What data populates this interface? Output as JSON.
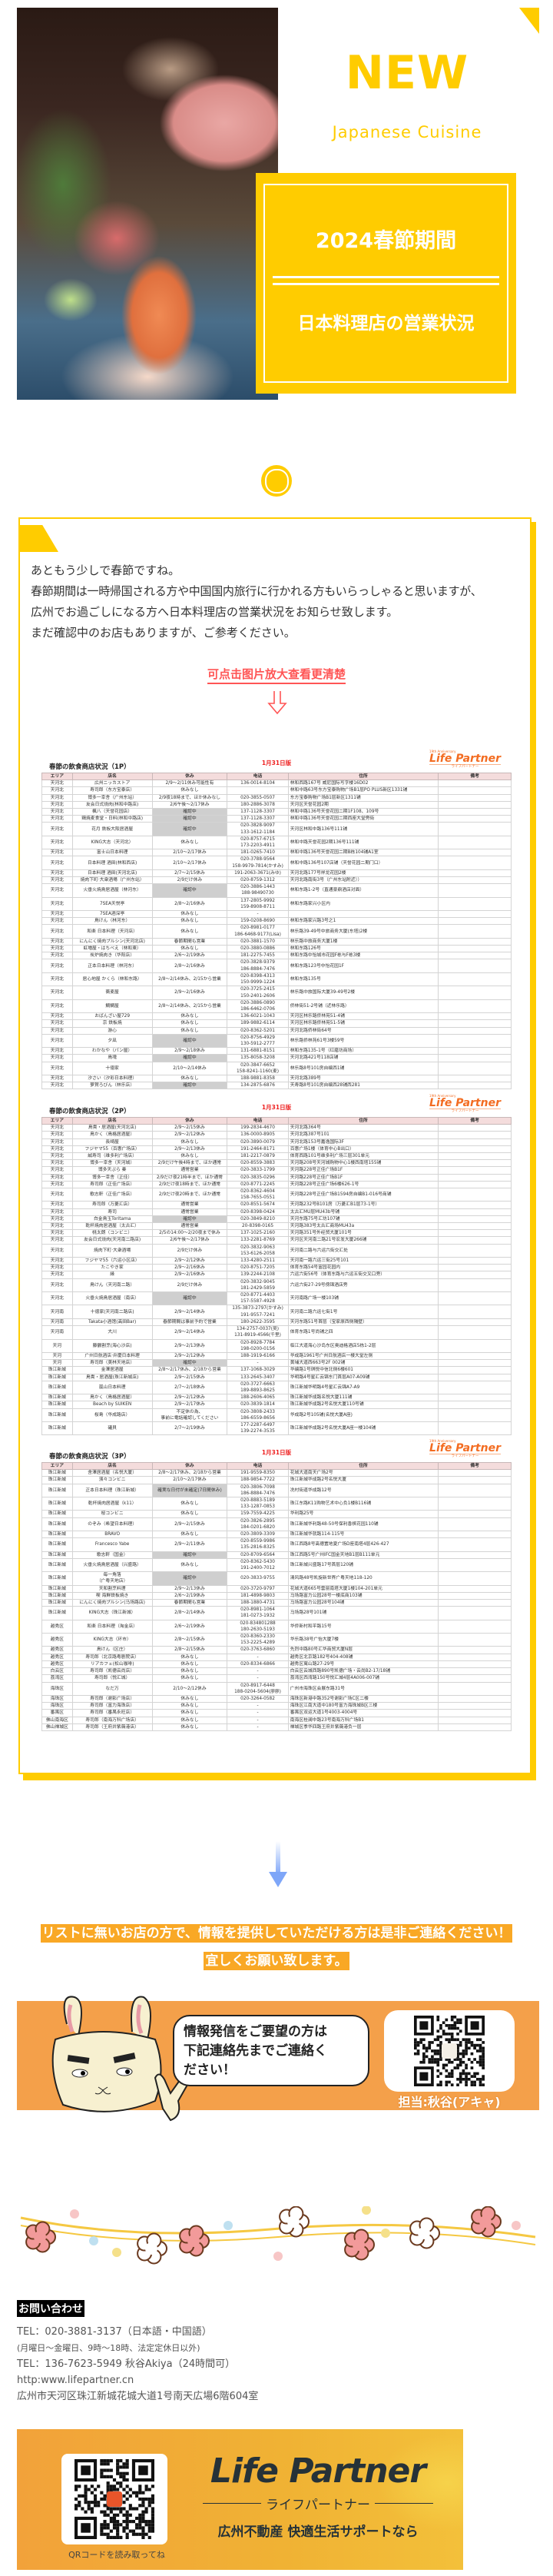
{
  "colors": {
    "accent": "#FFCC00",
    "orange": "#F4A04A",
    "link_red": "#FF5555",
    "logo_orange": "#F36C21"
  },
  "hero": {
    "title": "NEW",
    "subtitle": "Japanese Cuisine",
    "box_title": "2024春節期間",
    "box_subtitle": "日本料理店の営業状況"
  },
  "intro": {
    "lines": [
      "あともう少しで春節ですね。",
      "春節期間は一時帰国される方や中国国内旅行に行かれる方もいらっしゃると思いますが、",
      "広州でお過ごしになる方へ日本料理店の営業状況をお知らせ致します。",
      "まだ確認中のお店もありますが、ご参考ください。"
    ],
    "zoom_hint": "可点击图片放大查看更清楚",
    "arrow_icon": "arrow-down-outline-icon"
  },
  "table_logo": {
    "anniversary": "19th Anniversary",
    "name": "Life Partner",
    "sub": "ライフパートナー"
  },
  "tables": [
    {
      "title": "春節の飲食商店状況（1P）",
      "edition": "1月31日版",
      "headers": [
        "エリア",
        "店名",
        "休み",
        "电话",
        "住所",
        "備考"
      ],
      "rows": [
        [
          "天河北",
          "広州ニッカストア",
          "2/9～2/11休み可能性有",
          "136-0014-8104",
          "林和西路167号 威尼国际写字楼16D02"
        ],
        [
          "天河北",
          "寿司郎（东方宝泰店）",
          "休みなし",
          "",
          "林和中路63号东方宝泰购物广场B1层PO PLUS新区1331铺"
        ],
        [
          "天河北",
          "博多一幸舎（广州东站）",
          "2/9夜18時まで、ほか休みなし",
          "020-3855-0507",
          "东方宝泰购物广场B1层新区1311铺"
        ],
        [
          "天河北",
          "友会日式烧肉(林和中路店)",
          "2/6午後～2/17休み",
          "180-2886-3078",
          "天河区天誉花园2期"
        ],
        [
          "天河北",
          "楓八（天誉花园店）",
          "確認中",
          "137-1128-3307",
          "林和中路136号天誉花园二期1F108、109号"
        ],
        [
          "天河北",
          "鶏焼麦食堂・日料(林和中路店)",
          "確認中",
          "137-1128-3307",
          "林和中路136号天誉花园二期西座大堂旁街"
        ],
        [
          "天河北",
          "花月 鉄板大阪居酒屋",
          "確認中",
          "020-3828-9097\n133-1612-1184",
          "天河区林和中路136号111铺"
        ],
        [
          "天河北",
          "KING大志（天河北）",
          "休みなし",
          "020-8757-6715\n173-2203-4911",
          "林和中路天誉花园2期136号111铺"
        ],
        [
          "天河北",
          "富士山日本料理",
          "2/10～2/17休み",
          "181-0265-7410",
          "林和中路136号天誉花园二期B栋104铺A1室"
        ],
        [
          "天河北",
          "日本料理 酒田(林和西店)",
          "2/10～2/17休み",
          "020-3788-9564\n158-9979-7814(かすみ)",
          "林和中路136号107店铺（天誉花园二期门口）"
        ],
        [
          "天河北",
          "日本料理 酒田(天河北店)",
          "2/7～2/15休み",
          "191-2063-3671(みゆ)",
          "天河北路177号祥龙花园2楼"
        ],
        [
          "天河北",
          "焼肉下町·大衆酒場（广州东站）",
          "2/9だけ休み",
          "020-8759-1312",
          "天河北路南街3号（广州东站附近））"
        ],
        [
          "天河北",
          "火垂火焼鳥居酒屋（林河东）",
          "確認中",
          "020-3886-1443\n188-98490730",
          "林和东路1-2号（直通豪鼎酒店对面）"
        ],
        [
          "天河北",
          "7SEA天悦亭",
          "2/8～2/16休み",
          "137-2805-9992\n159-8908-8711",
          "林和东路家兴小区内"
        ],
        [
          "天河北",
          "7SEA酒深亭",
          "休みなし",
          "-",
          ""
        ],
        [
          "天河北",
          "鳥けん（林河东）",
          "休みなし",
          "159-0208-8690",
          "林和东路家兴路3号之1"
        ],
        [
          "天河北",
          "和楽 日本料理（天河店）",
          "休みなし",
          "020-8981-0177\n186-6468-9177(Lisa)",
          "林乐路39-49号中旅商务大厦(东塔)2楼"
        ],
        [
          "天河北",
          "にんにく焼肉プルシン(天河北店)",
          "春節期間も営業",
          "020-3881-1570",
          "林乐路中旅商务大厦1楼"
        ],
        [
          "天河北",
          "虹増屋・はちべえ（林和東）",
          "休みなし",
          "020-3880-0886",
          "林和东路126号"
        ],
        [
          "天河北",
          "炭炉焼肉き（华阳店）",
          "2/6～2/19休み",
          "181-2275-7455",
          "林和东路中怡城市花园F栋与F栋3楼"
        ],
        [
          "天河北",
          "正本日本料理（林河东）",
          "2/8～2/16休み",
          "020-3828-9379\n186-8884-7476",
          "林和东路123号中怡花园1F"
        ],
        [
          "天河北",
          "居心地屋 かくら（林和东路）",
          "2/8～2/14休み、2/15から営業",
          "020-8398-4313\n150-9999-1224",
          "林和东路135号"
        ],
        [
          "天河北",
          "蕎麦屋",
          "2/9～2/16休み",
          "020-3725-2415\n150-2401-2606",
          "林乐路中旅国际大厦39-49号2楼"
        ],
        [
          "天河北",
          "鯛鯛屋",
          "2/8～2/14休み、2/15から営業",
          "020-3886-0890\n186-6462-0706",
          "侨林街51-2号铺（近林乐路）"
        ],
        [
          "天河北",
          "おばんざい屋729",
          "休みなし",
          "136-6021-1043",
          "天河区林乐路侨林苑51-4铺"
        ],
        [
          "天河北",
          "京 鉄板焼",
          "休みなし",
          "189-9882-6114",
          "天河区林乐路侨林苑51-5铺"
        ],
        [
          "天河北",
          "游心",
          "休みなし",
          "020-8362-5201",
          "天河北路侨林街64号"
        ],
        [
          "天河北",
          "夕凪",
          "確認中",
          "020-8756-4929\n130-5912-2777",
          "林乐路侨林苑61号3楼59号"
        ],
        [
          "天河北",
          "わかなや（パン屋）",
          "2/9～2/18休み",
          "131-6881-8151",
          "林和东路135-1号（红磨坊商场）"
        ],
        [
          "天河北",
          "鳥魂",
          "確認中",
          "135-8058-3208",
          "天河北路421号118店铺"
        ],
        [
          "天河北",
          "十徳家",
          "2/10～2/14休み",
          "020-3847-6652\n158-8241-1160(麦)",
          "林乐路8号101房自编西1铺"
        ],
        [
          "天河北",
          "汐さい（汐彩日本料理）",
          "休みなし",
          "188-9881-8358",
          "天河北路389号"
        ],
        [
          "天河北",
          "萝賀ろびん（林乐店）",
          "確認中",
          "134-2875-6876",
          "天寿路8号101房自编西28铺西281"
        ]
      ]
    },
    {
      "title": "春節の飲食商店状況（2P）",
      "edition": "1月31日版",
      "headers": [
        "エリア",
        "店名",
        "休み",
        "电话",
        "住所",
        "備考"
      ],
      "rows": [
        [
          "天河北",
          "鳥貴・居酒屋(天河北店)",
          "2/9～2/15休み",
          "199-2834-4670",
          "天河北路364号"
        ],
        [
          "天河北",
          "鳥かく（鳥格居酒屋）",
          "2/9～2/12休み",
          "136-0000-8905",
          "天河北路387号101"
        ],
        [
          "天河北",
          "長崎屋",
          "休みなし",
          "020-3890-0079",
          "天河北路153号嘉逸国际3F"
        ],
        [
          "天河北",
          "フジヤマ55（百惠广场店）",
          "2/9～2/13休み",
          "191-2464-8171",
          "百惠广场1楼（体育中心B出口）"
        ],
        [
          "天河北",
          "誠寿司（维多利广场店）",
          "休みなし",
          "181-2217-0879",
          "体育西路101号维多利广场三层301单元"
        ],
        [
          "天河北",
          "博多一幸舎（天河城）",
          "2/9だけ午後4時まで、ほか通常",
          "020-8559-3883",
          "天河路208号天河城购物中心1楼西南塔155铺"
        ],
        [
          "天河北",
          "博多天ぷら 秦",
          "通常営業",
          "020-3833-1799",
          "天河路228号正佳广场B1F"
        ],
        [
          "天河北",
          "博多一幸舎（正佳）",
          "2/9だけ夜21時半まで、ほか通常",
          "020-3835-0296",
          "天河路228号正佳广场B1F"
        ],
        [
          "天河北",
          "寿司郎（正佳广场店）",
          "2/9だけ夜18時まで、ほか通常",
          "020-8771-2245",
          "天河路228号正佳广场6楼626-1号"
        ],
        [
          "天河北",
          "歌志軒（正佳广场店）",
          "2/9だけ夜20時まで、ほか通常",
          "020-8362-4604\n158-7655-0551",
          "天河路228号正佳广场B1594房自编B1-016号商铺"
        ],
        [
          "天河北",
          "寿司郎（万菱汇店）",
          "通常営業",
          "020-8551-5674",
          "天河路232号B101房（万菱汇B1层73-1号）"
        ],
        [
          "天河北",
          "寿司",
          "通常営業",
          "020-8398-0424",
          "太古汇MU层MU43b号铺"
        ],
        [
          "天河北",
          "白金鳥玉Toritama",
          "確認中",
          "020-3849-8210",
          "天河东路75号汇坊107铺"
        ],
        [
          "天河北",
          "乾杯焼肉居酒屋（太古汇）",
          "通常営業",
          "20-8398-0165",
          "天河路383号太古汇商场MU43a"
        ],
        [
          "天河北",
          "桃太朗（コンビニ）",
          "2/5の14:00～2/20夜まで休み",
          "137-1025-2160",
          "天河路351号外经贸大厦101号"
        ],
        [
          "天河北",
          "友会日式烧肉(天河南二路店)",
          "2/6午後～2/17休み",
          "133-2281-8769",
          "天河区天河南二路21号宏发大厦266铺"
        ],
        [
          "天河北",
          "焼肉下町·大衆酒場",
          "2/9だけ休み",
          "020-3832-9063\n153-6126-2058",
          "天河南二路与六运六街交汇处"
        ],
        [
          "天河北",
          "フジヤマ55（六运小区店）",
          "2/9～2/12休み",
          "133-4280-2511",
          "天河南一路六运三街25号101"
        ],
        [
          "天河北",
          "たこやき家",
          "2/9～2/16休み",
          "020-8751-7205",
          "体育东路54号富园花园内"
        ],
        [
          "天河北",
          "縁",
          "2/9～2/16休み",
          "139-2244-2108",
          "六运六街56号（体育东路与六运五街交叉口旁）"
        ],
        [
          "天河北",
          "鳥けん（天河南二路）",
          "2/9だけ休み",
          "020-3832-9045\n181-2429-5859",
          "六运六街27-29号傍锦酒店旁"
        ],
        [
          "天河北",
          "火垂火焼鳥居酒屋（南店）",
          "確認中",
          "020-8771-4403\n157-5587-4928",
          "天河南路广场一楼103铺"
        ],
        [
          "天河南",
          "十徳家(天河南二路店)",
          "2/9～2/14休み",
          "135-3873-2797(かすみ)\n191-9557-7241",
          "天河南二路六运七街1号"
        ],
        [
          "天河南",
          "Takata小酒馆(高田Bar)",
          "春節期間は事前予約で営業",
          "180-2622-3595",
          "天河东路51号首层（宝家原西侧隔壁）"
        ],
        [
          "天河南",
          "大川",
          "2/9～2/14休み",
          "134-2757-0037(吴)\n131-8919-4566(千里)",
          "体育东路1号尚铺之四"
        ],
        [
          "天河",
          "藤鶴割烹(海心沙店)",
          "2/9～2/13休み",
          "020-8928-7784\n198-0200-0156",
          "临江大道海心沙岛东区奥迪格酒店5栋1-2层"
        ],
        [
          "天河",
          "广州日航酒店·弁慶日本料理",
          "2/9～2/12休み",
          "188-1919-6166",
          "华成路1961号广州日航酒店一楼大堂左侧"
        ],
        [
          "天河",
          "寿司郎（美林天地店）",
          "確認中",
          "-",
          "黄埔大道西663号2F 002铺"
        ],
        [
          "珠江新城",
          "金澤居酒屋",
          "2/8～2/17休み、2/18から営業",
          "137-1068-3029",
          "华编路1号琪悦中信北侧6楼601"
        ],
        [
          "珠江新城",
          "鳥貴・居酒屋(珠江新城店)",
          "2/9～2/15休み",
          "133-2645-3407",
          "华明路4号星汇云锦东门首层A07-A09铺"
        ],
        [
          "珠江新城",
          "嵐山日本料理",
          "2/7～2/18休み",
          "020-3727-6663\n189-8893-8625",
          "珠江新城华明路4号星汇云锦A7-A9"
        ],
        [
          "珠江新城",
          "鳥かく（鳥格居酒屋）",
          "2/9～2/12休み",
          "188-2606-4065",
          "珠江新城华成路名悦大厦111铺"
        ],
        [
          "珠江新城",
          "Beach by SUIKEN",
          "2/9～2/17休み",
          "020-3839-1814",
          "珠江新城华成路2号名悦大厦110号铺"
        ],
        [
          "珠江新城",
          "桜島（华成路店）",
          "不定休の為、\n事前に電話確認してください",
          "020-3808-2433\n186-6559-8656",
          "华成路2号105铺(名悦大厦A座)"
        ],
        [
          "珠江新城",
          "礒貝",
          "2/7～2/19休み",
          "177-2287-6497\n139-2274-3535",
          "珠江新城华成路2号名悦大厦A座一楼104铺"
        ]
      ]
    },
    {
      "title": "春節の飲食商店状況（3P）",
      "edition": "1月31日版",
      "headers": [
        "エリア",
        "店名",
        "休み",
        "电话",
        "住所",
        "備考"
      ],
      "rows": [
        [
          "珠江新城",
          "舍澤居酒屋（名悦大厦）",
          "2/8～2/17休み、2/18から営業",
          "191-9559-8350",
          "花城大道南天广场2号"
        ],
        [
          "珠江新城",
          "濱々コンビニ",
          "2/10～2/17休み",
          "188-9854-7722",
          "珠江新城华成路2号名悦大厦"
        ],
        [
          "珠江新城",
          "正本日本料理（珠江新城）",
          "確実な日付が未確定(7日間休み)",
          "020-3806-7098\n186-8884-7476",
          "冼村街道华成路12号"
        ],
        [
          "珠江新城",
          "乾杯焼肉居酒屋（k11）",
          "休みなし",
          "020-8883-5189\n133-1287-0853",
          "珠江东路K11购物艺术中心负1楼B116铺"
        ],
        [
          "珠江新城",
          "桜コンビニ",
          "休みなし",
          "159-7559-4225",
          "华利路25号"
        ],
        [
          "珠江新城",
          "のぞみ（希望日本料理）",
          "2/9～2/15休み",
          "020-3826-2895\n184-0201-6820",
          "珠江新城华利路48-50号保利香槟花园110铺"
        ],
        [
          "珠江新城",
          "BRAVO",
          "休みなし",
          "020-3809-3309",
          "珠江新城华就路114-115号"
        ],
        [
          "珠江新城",
          "Francesco Yabe",
          "2/9～2/11休み",
          "020-8559-9986\n135-2816-8325",
          "珠江西路8号高德置地夏广场D座南塔4层426-427"
        ],
        [
          "珠江新城",
          "歌志軒（国金）",
          "確認中",
          "020-8709-6564",
          "珠江西路5号广州IFC国金天地B1层B111单元"
        ],
        [
          "珠江新城",
          "火垂火焼鳥居酒屋（兴盛路）",
          "休みなし",
          "020-8362-5430\n191-2400-7012",
          "珠江新城兴盛路17号首层120铺"
        ],
        [
          "珠江新城",
          "每一角落\n（广粤天地店）",
          "確認中",
          "020-3833-9755",
          "清风路48号凯旋新世界广粤天地118-120"
        ],
        [
          "珠江新城",
          "天和割烹料理",
          "2/9～2/13休み",
          "020-3720-9797",
          "花城大道665号雲丽南塔大厦1楼104-201单元"
        ],
        [
          "珠江新城",
          "喫 海鮮鉄板焼き",
          "2/6～2/19休み",
          "181-4898-9803",
          "马场路富力公园28号一楼底商103铺"
        ],
        [
          "珠江新城",
          "にんにく焼肉プルシン(马场路店)",
          "春節期間も営業",
          "188-1880-4731",
          "马场路富力公园28号104铺"
        ],
        [
          "珠江新城",
          "KING大志（珠江新城）",
          "2/8～2/14休み",
          "020-8981-1064\n181-0273-1932",
          "马场路28号101铺"
        ],
        [
          "越秀区",
          "和楽 日本料理（淘金店）",
          "2/6～2/19休み",
          "020-834801288\n180-2630-5193",
          "华侨新村和平路15号"
        ],
        [
          "越秀区",
          "KING大志（环市）",
          "2/8～2/15休み",
          "020-8360-2330\n153-2225-4289",
          "华乐路38号广怡大厦7楼"
        ],
        [
          "越秀区",
          "鳥けん（区庄）",
          "2/8～2/15休み",
          "020-3763-6860",
          "先烈中路80号汇华商贸大厦N层"
        ],
        [
          "越秀区",
          "寿司郎（北京路粤剧院店）",
          "休みなし",
          "-",
          "越秀区北京路182号404-408铺"
        ],
        [
          "越秀区",
          "リアカフェ(松山咖啡)",
          "休みなし",
          "020-8334-6866",
          "越秀区寓山路27-29号"
        ],
        [
          "白云区",
          "寿司郎（凯德云尚店）",
          "休みなし",
          "-",
          "白云区云城西路890号凯德广场・云尚B2-17/18铺"
        ],
        [
          "荔湾区",
          "寿司郎（悦汇城）",
          "休みなし",
          "-",
          "荔湾区西湾路150号悦汇城4层4A006-007铺"
        ],
        [
          "海珠区",
          "なだ万",
          "2/10～2/12休み",
          "020-8917-6448\n188-0204-5604(廖廖)",
          "广州市海珠区会展东路31号"
        ],
        [
          "海珠区",
          "寿司郎（谢影广场店）",
          "休みなし",
          "020-3264-0582",
          "海珠区新港中路352号谢影广场C区二楼"
        ],
        [
          "海珠区",
          "寿司郎（富力海珠店）",
          "休みなし",
          "-",
          "海珠区江南大道中180号富力海珠城B区三楼"
        ],
        [
          "番禺区",
          "寿司郎（番禺永旺店）",
          "休みなし",
          "-",
          "番禺区双运大道1号4003-4004号"
        ],
        [
          "佛山南海区",
          "寿司郎（南海万科广场店）",
          "休みなし",
          "-",
          "南海区桂澜中路23号南海万科广场B1"
        ],
        [
          "佛山禅城区",
          "寿司郎（王府井紫薇港店）",
          "休みなし",
          "-",
          "禅城区季华四路王府井紫薇港负一层"
        ]
      ]
    }
  ],
  "cta": {
    "lines": [
      "リストに無いお店の方で、情報を提供していただける方は是非ご連絡ください！",
      "宜しくお願い致します。"
    ],
    "bubble_lines": [
      "情報発信をご要望の方は",
      "下記連絡先までご連絡く",
      "ださい！"
    ],
    "contact_person": "担当:秋谷(アキャ)"
  },
  "contact": {
    "heading": "お問い合わせ",
    "tel1": "TEL：020-3881-3137（日本語・中国語）",
    "hours": "(月曜日～金曜日、9時～18時、法定定休日以外)",
    "tel2": "TEL：136-7623-5949 秋谷Akiya（24時間可）",
    "url": "http:www.lifepartner.cn",
    "address": "広州市天河区珠江新城花城大道1号南天広場6階604室"
  },
  "banner": {
    "logo": "Life Partner",
    "logo_sub": "ライフパートナー",
    "tagline": "広州不動産  快適生活サポートなら",
    "qr_caption": "QRコードを読み取ってね"
  }
}
